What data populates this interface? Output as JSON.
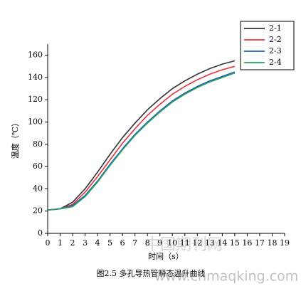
{
  "chart_data": {
    "type": "line",
    "caption": "图2.5 多孔导热管瞬态温升曲线",
    "x_label": "时间（s）",
    "y_label": "温度（℃）",
    "x": [
      0,
      1,
      2,
      3,
      4,
      5,
      6,
      7,
      8,
      9,
      10,
      11,
      12,
      13,
      14,
      15
    ],
    "series": [
      {
        "name": "2-1",
        "color": "#333333",
        "values": [
          21,
          22,
          28,
          40,
          55,
          71,
          86,
          99,
          111,
          121,
          130,
          137,
          143,
          148,
          152,
          155
        ]
      },
      {
        "name": "2-2",
        "color": "#e8323c",
        "values": [
          21,
          22,
          26,
          37,
          51,
          66,
          81,
          94,
          106,
          116,
          125,
          132,
          138,
          143,
          147,
          150
        ]
      },
      {
        "name": "2-3",
        "color": "#1f5fbf",
        "values": [
          21,
          22,
          25,
          34,
          47,
          62,
          76,
          89,
          100,
          110,
          119,
          126,
          132,
          137,
          141,
          145
        ]
      },
      {
        "name": "2-4",
        "color": "#2ca05a",
        "values": [
          21,
          22,
          24,
          33,
          46,
          61,
          75,
          88,
          99,
          109,
          118,
          125,
          131,
          136,
          140,
          144
        ]
      }
    ],
    "xlim": [
      0,
      19
    ],
    "xticks": [
      0,
      1,
      2,
      3,
      4,
      5,
      6,
      7,
      8,
      9,
      10,
      11,
      12,
      13,
      14,
      15,
      16,
      17,
      18,
      19
    ],
    "ylim": [
      0,
      170
    ],
    "yticks": [
      0,
      20,
      40,
      60,
      80,
      100,
      120,
      140,
      160
    ],
    "legend": "top-right",
    "watermarks": [
      "中国期刊网",
      "www.cnmaqking.com"
    ]
  }
}
